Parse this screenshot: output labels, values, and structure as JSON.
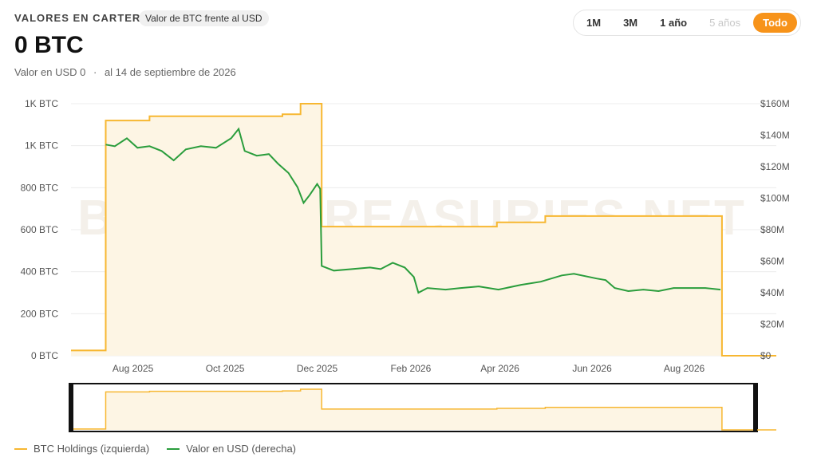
{
  "header": {
    "title": "VALORES EN CARTERA",
    "badge": "Valor de BTC frente al USD",
    "main_value": "0 BTC",
    "usd_value": "Valor en USD 0",
    "separator": "·",
    "date": "al 14 de septiembre de 2026"
  },
  "range": {
    "buttons": [
      {
        "label": "1M",
        "state": "normal"
      },
      {
        "label": "3M",
        "state": "normal"
      },
      {
        "label": "1 año",
        "state": "normal"
      },
      {
        "label": "5 años",
        "state": "disabled"
      },
      {
        "label": "Todo",
        "state": "active"
      }
    ]
  },
  "watermark": "BITCOINTREASURIES.NET",
  "colors": {
    "holdings": "#f7b731",
    "holdings_fill": "#fdf5e4",
    "usd": "#2a9d3c",
    "accent": "#f7931a"
  },
  "legend": {
    "holdings": "BTC Holdings (izquierda)",
    "usd": "Valor en USD (derecha)"
  },
  "chart_data": {
    "type": "line",
    "x_range": [
      "2025-06-21",
      "2026-10-01"
    ],
    "x_ticks": [
      {
        "date": "2025-08-01",
        "label": "Aug 2025"
      },
      {
        "date": "2025-10-01",
        "label": "Oct 2025"
      },
      {
        "date": "2025-12-01",
        "label": "Dec 2025"
      },
      {
        "date": "2026-02-01",
        "label": "Feb 2026"
      },
      {
        "date": "2026-04-01",
        "label": "Apr 2026"
      },
      {
        "date": "2026-06-01",
        "label": "Jun 2026"
      },
      {
        "date": "2026-08-01",
        "label": "Aug 2026"
      }
    ],
    "y_left": {
      "range": [
        0,
        1200
      ],
      "ticks": [
        0,
        200,
        400,
        600,
        800,
        1000,
        1200
      ],
      "tick_labels": [
        "0 BTC",
        "200 BTC",
        "400 BTC",
        "600 BTC",
        "800 BTC",
        "1K BTC",
        "1K BTC"
      ]
    },
    "y_right": {
      "range": [
        0,
        160
      ],
      "ticks": [
        0,
        20,
        40,
        60,
        80,
        100,
        120,
        140,
        160
      ],
      "tick_labels": [
        "$0",
        "$20M",
        "$40M",
        "$60M",
        "$80M",
        "$100M",
        "$120M",
        "$140M",
        "$160M"
      ]
    },
    "grid": true,
    "series": [
      {
        "name": "BTC Holdings (izquierda)",
        "axis": "left",
        "step": true,
        "points": [
          [
            "2025-06-21",
            25
          ],
          [
            "2025-07-13",
            25
          ],
          [
            "2025-07-14",
            1120
          ],
          [
            "2025-08-12",
            1140
          ],
          [
            "2025-11-08",
            1150
          ],
          [
            "2025-11-20",
            1200
          ],
          [
            "2025-12-04",
            615
          ],
          [
            "2026-03-30",
            635
          ],
          [
            "2026-05-01",
            665
          ],
          [
            "2026-08-26",
            0
          ],
          [
            "2026-10-01",
            0
          ]
        ]
      },
      {
        "name": "Valor en USD (derecha)",
        "axis": "right",
        "points": [
          [
            "2025-07-14",
            134
          ],
          [
            "2025-07-20",
            133
          ],
          [
            "2025-07-28",
            138
          ],
          [
            "2025-08-04",
            132
          ],
          [
            "2025-08-12",
            133
          ],
          [
            "2025-08-20",
            130
          ],
          [
            "2025-08-28",
            124
          ],
          [
            "2025-09-05",
            131
          ],
          [
            "2025-09-15",
            133
          ],
          [
            "2025-09-25",
            132
          ],
          [
            "2025-10-05",
            138
          ],
          [
            "2025-10-10",
            144
          ],
          [
            "2025-10-14",
            130
          ],
          [
            "2025-10-22",
            127
          ],
          [
            "2025-10-30",
            128
          ],
          [
            "2025-11-05",
            122
          ],
          [
            "2025-11-12",
            116
          ],
          [
            "2025-11-18",
            107
          ],
          [
            "2025-11-22",
            97
          ],
          [
            "2025-11-26",
            102
          ],
          [
            "2025-12-01",
            109
          ],
          [
            "2025-12-03",
            106
          ],
          [
            "2025-12-04",
            57
          ],
          [
            "2025-12-12",
            54
          ],
          [
            "2025-12-24",
            55
          ],
          [
            "2026-01-05",
            56
          ],
          [
            "2026-01-12",
            55
          ],
          [
            "2026-01-20",
            59
          ],
          [
            "2026-01-28",
            56
          ],
          [
            "2026-02-03",
            50
          ],
          [
            "2026-02-06",
            40
          ],
          [
            "2026-02-12",
            43
          ],
          [
            "2026-02-24",
            42
          ],
          [
            "2026-03-06",
            43
          ],
          [
            "2026-03-18",
            44
          ],
          [
            "2026-03-31",
            42
          ],
          [
            "2026-04-15",
            45
          ],
          [
            "2026-04-28",
            47
          ],
          [
            "2026-05-12",
            51
          ],
          [
            "2026-05-20",
            52
          ],
          [
            "2026-06-04",
            49
          ],
          [
            "2026-06-10",
            48
          ],
          [
            "2026-06-16",
            43
          ],
          [
            "2026-06-25",
            41
          ],
          [
            "2026-07-05",
            42
          ],
          [
            "2026-07-15",
            41
          ],
          [
            "2026-07-25",
            43
          ],
          [
            "2026-08-05",
            43
          ],
          [
            "2026-08-15",
            43
          ],
          [
            "2026-08-25",
            42
          ]
        ]
      }
    ]
  }
}
